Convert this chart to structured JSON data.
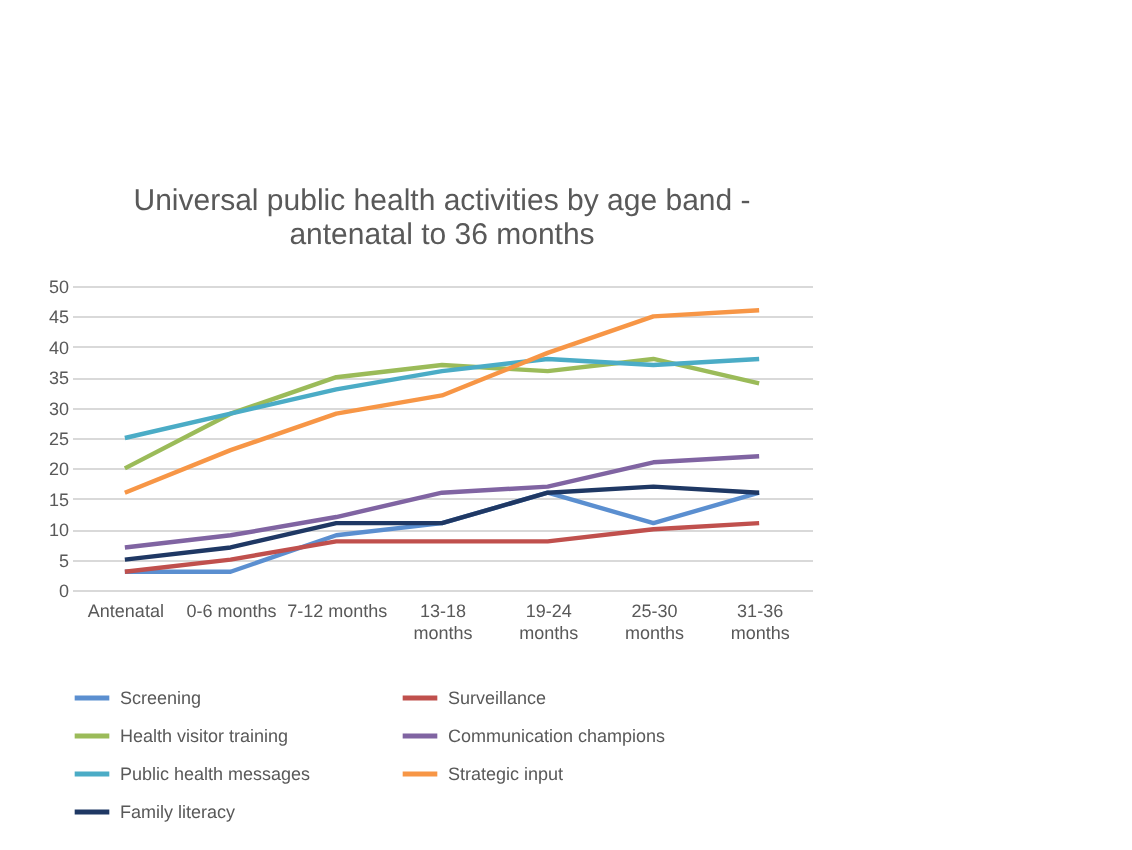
{
  "chart_data": {
    "type": "line",
    "title": "Universal public health activities by age band -\nantenatal to 36 months",
    "categories": [
      "Antenatal",
      "0-6 months",
      "7-12 months",
      "13-18 months",
      "19-24 months",
      "25-30 months",
      "31-36 months"
    ],
    "series": [
      {
        "name": "Screening",
        "color": "#5b8fd0",
        "values": [
          3,
          3,
          9,
          11,
          16,
          11,
          16
        ]
      },
      {
        "name": "Surveillance",
        "color": "#c0504d",
        "values": [
          3,
          5,
          8,
          8,
          8,
          10,
          11
        ]
      },
      {
        "name": "Health visitor training",
        "color": "#9bbb59",
        "values": [
          20,
          29,
          35,
          37,
          36,
          38,
          34
        ]
      },
      {
        "name": "Communication champions",
        "color": "#8064a2",
        "values": [
          7,
          9,
          12,
          16,
          17,
          21,
          22
        ]
      },
      {
        "name": "Public health messages",
        "color": "#4bacc6",
        "values": [
          25,
          29,
          33,
          36,
          38,
          37,
          38
        ]
      },
      {
        "name": "Strategic input",
        "color": "#f79646",
        "values": [
          16,
          23,
          29,
          32,
          39,
          45,
          46
        ]
      },
      {
        "name": "Family literacy",
        "color": "#1f3864",
        "values": [
          5,
          7,
          11,
          11,
          16,
          17,
          16
        ]
      }
    ],
    "ylim": [
      0,
      50
    ],
    "yticks": [
      0,
      5,
      10,
      15,
      20,
      25,
      30,
      35,
      40,
      45,
      50
    ],
    "grid": "y",
    "legend": "bottom",
    "marker": "none",
    "line_style": "solid"
  }
}
